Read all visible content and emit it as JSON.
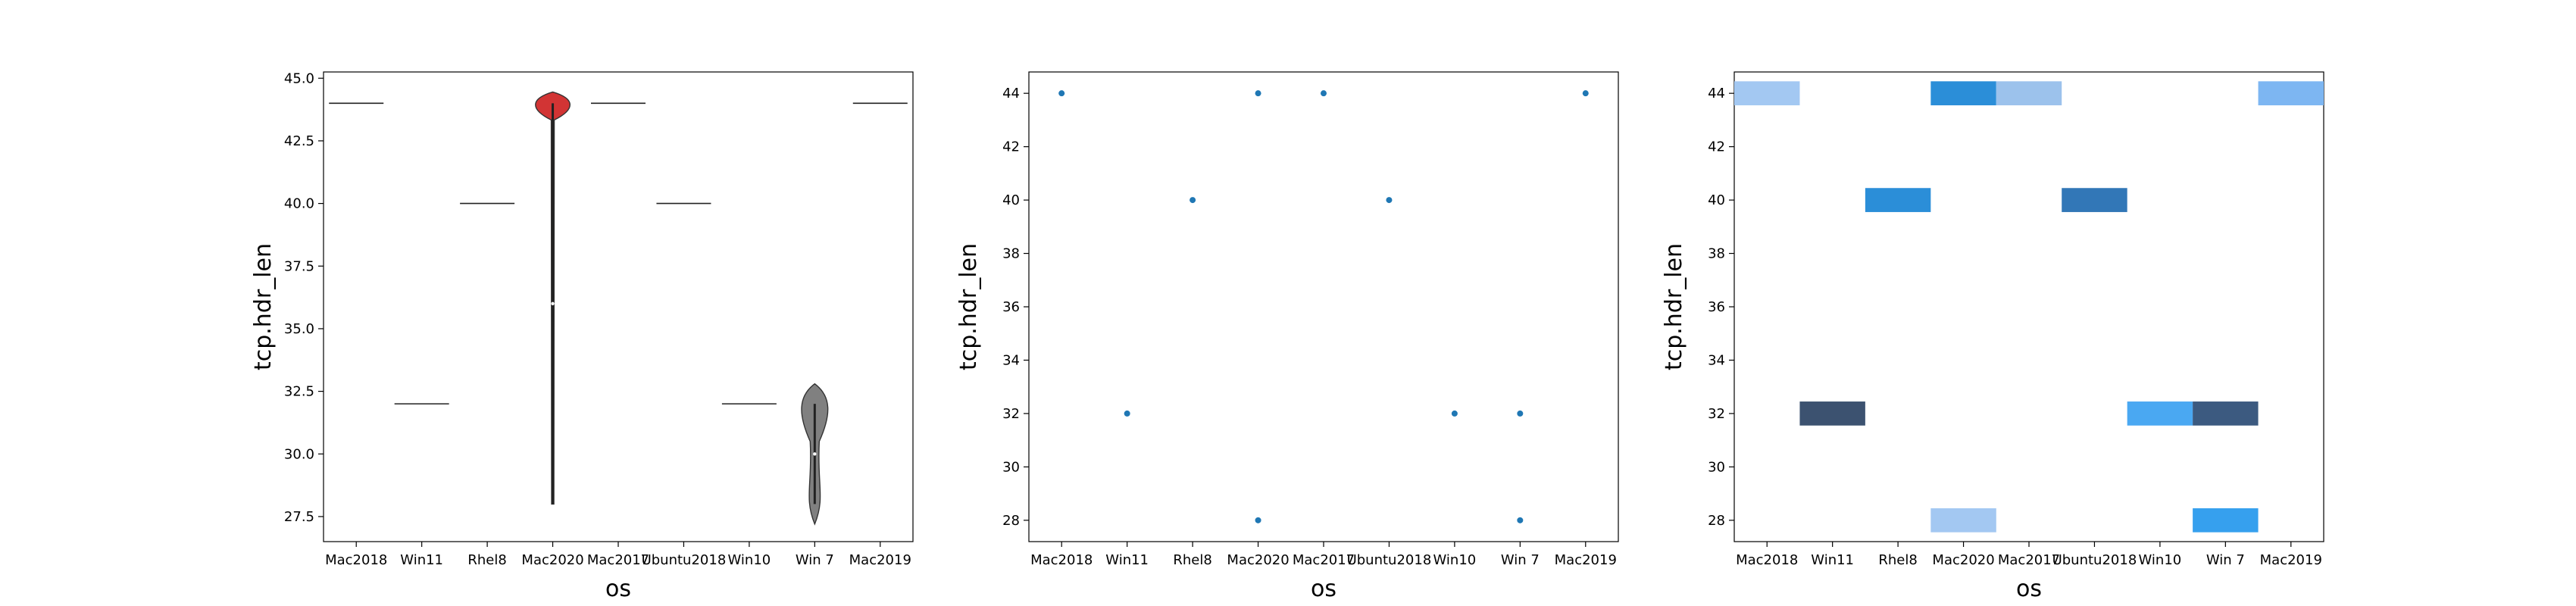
{
  "chart_data": [
    {
      "type": "violin",
      "xlabel": "os",
      "ylabel": "tcp.hdr_len",
      "categories": [
        "Mac2018",
        "Win11",
        "Rhel8",
        "Mac2020",
        "Mac2017",
        "Ubuntu2018",
        "Win10",
        "Win 7",
        "Mac2019"
      ],
      "ylim": [
        26.5,
        45.25
      ],
      "yticks": [
        "27.5",
        "30.0",
        "32.5",
        "35.0",
        "37.5",
        "40.0",
        "42.5",
        "45.0"
      ],
      "series": [
        {
          "category": "Mac2018",
          "values": [
            44
          ],
          "color": "#ffffff"
        },
        {
          "category": "Win11",
          "values": [
            32
          ],
          "color": "#ffffff"
        },
        {
          "category": "Rhel8",
          "values": [
            40
          ],
          "color": "#ffffff"
        },
        {
          "category": "Mac2020",
          "values": [
            44,
            28
          ],
          "color": "#d23434"
        },
        {
          "category": "Mac2017",
          "values": [
            44
          ],
          "color": "#ffffff"
        },
        {
          "category": "Ubuntu2018",
          "values": [
            40
          ],
          "color": "#ffffff"
        },
        {
          "category": "Win10",
          "values": [
            32
          ],
          "color": "#ffffff"
        },
        {
          "category": "Win 7",
          "values": [
            32,
            28
          ],
          "color": "#808080"
        },
        {
          "category": "Mac2019",
          "values": [
            44
          ],
          "color": "#ffffff"
        }
      ]
    },
    {
      "type": "scatter",
      "xlabel": "os",
      "ylabel": "tcp.hdr_len",
      "categories": [
        "Mac2018",
        "Win11",
        "Rhel8",
        "Mac2020",
        "Mac2017",
        "Ubuntu2018",
        "Win10",
        "Win 7",
        "Mac2019"
      ],
      "ylim": [
        27.2,
        44.8
      ],
      "yticks": [
        "28",
        "30",
        "32",
        "34",
        "36",
        "38",
        "40",
        "42",
        "44"
      ],
      "color": "#1f77b4",
      "points": [
        {
          "x": "Mac2018",
          "y": 44
        },
        {
          "x": "Win11",
          "y": 32
        },
        {
          "x": "Rhel8",
          "y": 40
        },
        {
          "x": "Mac2020",
          "y": 44
        },
        {
          "x": "Mac2020",
          "y": 28
        },
        {
          "x": "Mac2017",
          "y": 44
        },
        {
          "x": "Ubuntu2018",
          "y": 40
        },
        {
          "x": "Win10",
          "y": 32
        },
        {
          "x": "Win 7",
          "y": 32
        },
        {
          "x": "Win 7",
          "y": 28
        },
        {
          "x": "Mac2019",
          "y": 44
        }
      ]
    },
    {
      "type": "heatmap",
      "xlabel": "os",
      "ylabel": "tcp.hdr_len",
      "categories": [
        "Mac2018",
        "Win11",
        "Rhel8",
        "Mac2020",
        "Mac2017",
        "Ubuntu2018",
        "Win10",
        "Win 7",
        "Mac2019"
      ],
      "ylim": [
        27.2,
        44.8
      ],
      "yticks": [
        "28",
        "30",
        "32",
        "34",
        "36",
        "38",
        "40",
        "42",
        "44"
      ],
      "cells": [
        {
          "x": "Mac2018",
          "y": 44,
          "color": "#a3c8f2"
        },
        {
          "x": "Win11",
          "y": 32,
          "color": "#3c5270"
        },
        {
          "x": "Rhel8",
          "y": 40,
          "color": "#2b8ed8"
        },
        {
          "x": "Mac2020",
          "y": 44,
          "color": "#2b8ed8"
        },
        {
          "x": "Mac2020",
          "y": 28,
          "color": "#a3c8f2"
        },
        {
          "x": "Mac2017",
          "y": 44,
          "color": "#9cc2ec"
        },
        {
          "x": "Ubuntu2018",
          "y": 40,
          "color": "#3277b7"
        },
        {
          "x": "Win10",
          "y": 32,
          "color": "#4aa8f2"
        },
        {
          "x": "Win 7",
          "y": 32,
          "color": "#3c5a80"
        },
        {
          "x": "Win 7",
          "y": 28,
          "color": "#36a0ee"
        },
        {
          "x": "Mac2019",
          "y": 44,
          "color": "#7db6f2"
        }
      ]
    }
  ]
}
